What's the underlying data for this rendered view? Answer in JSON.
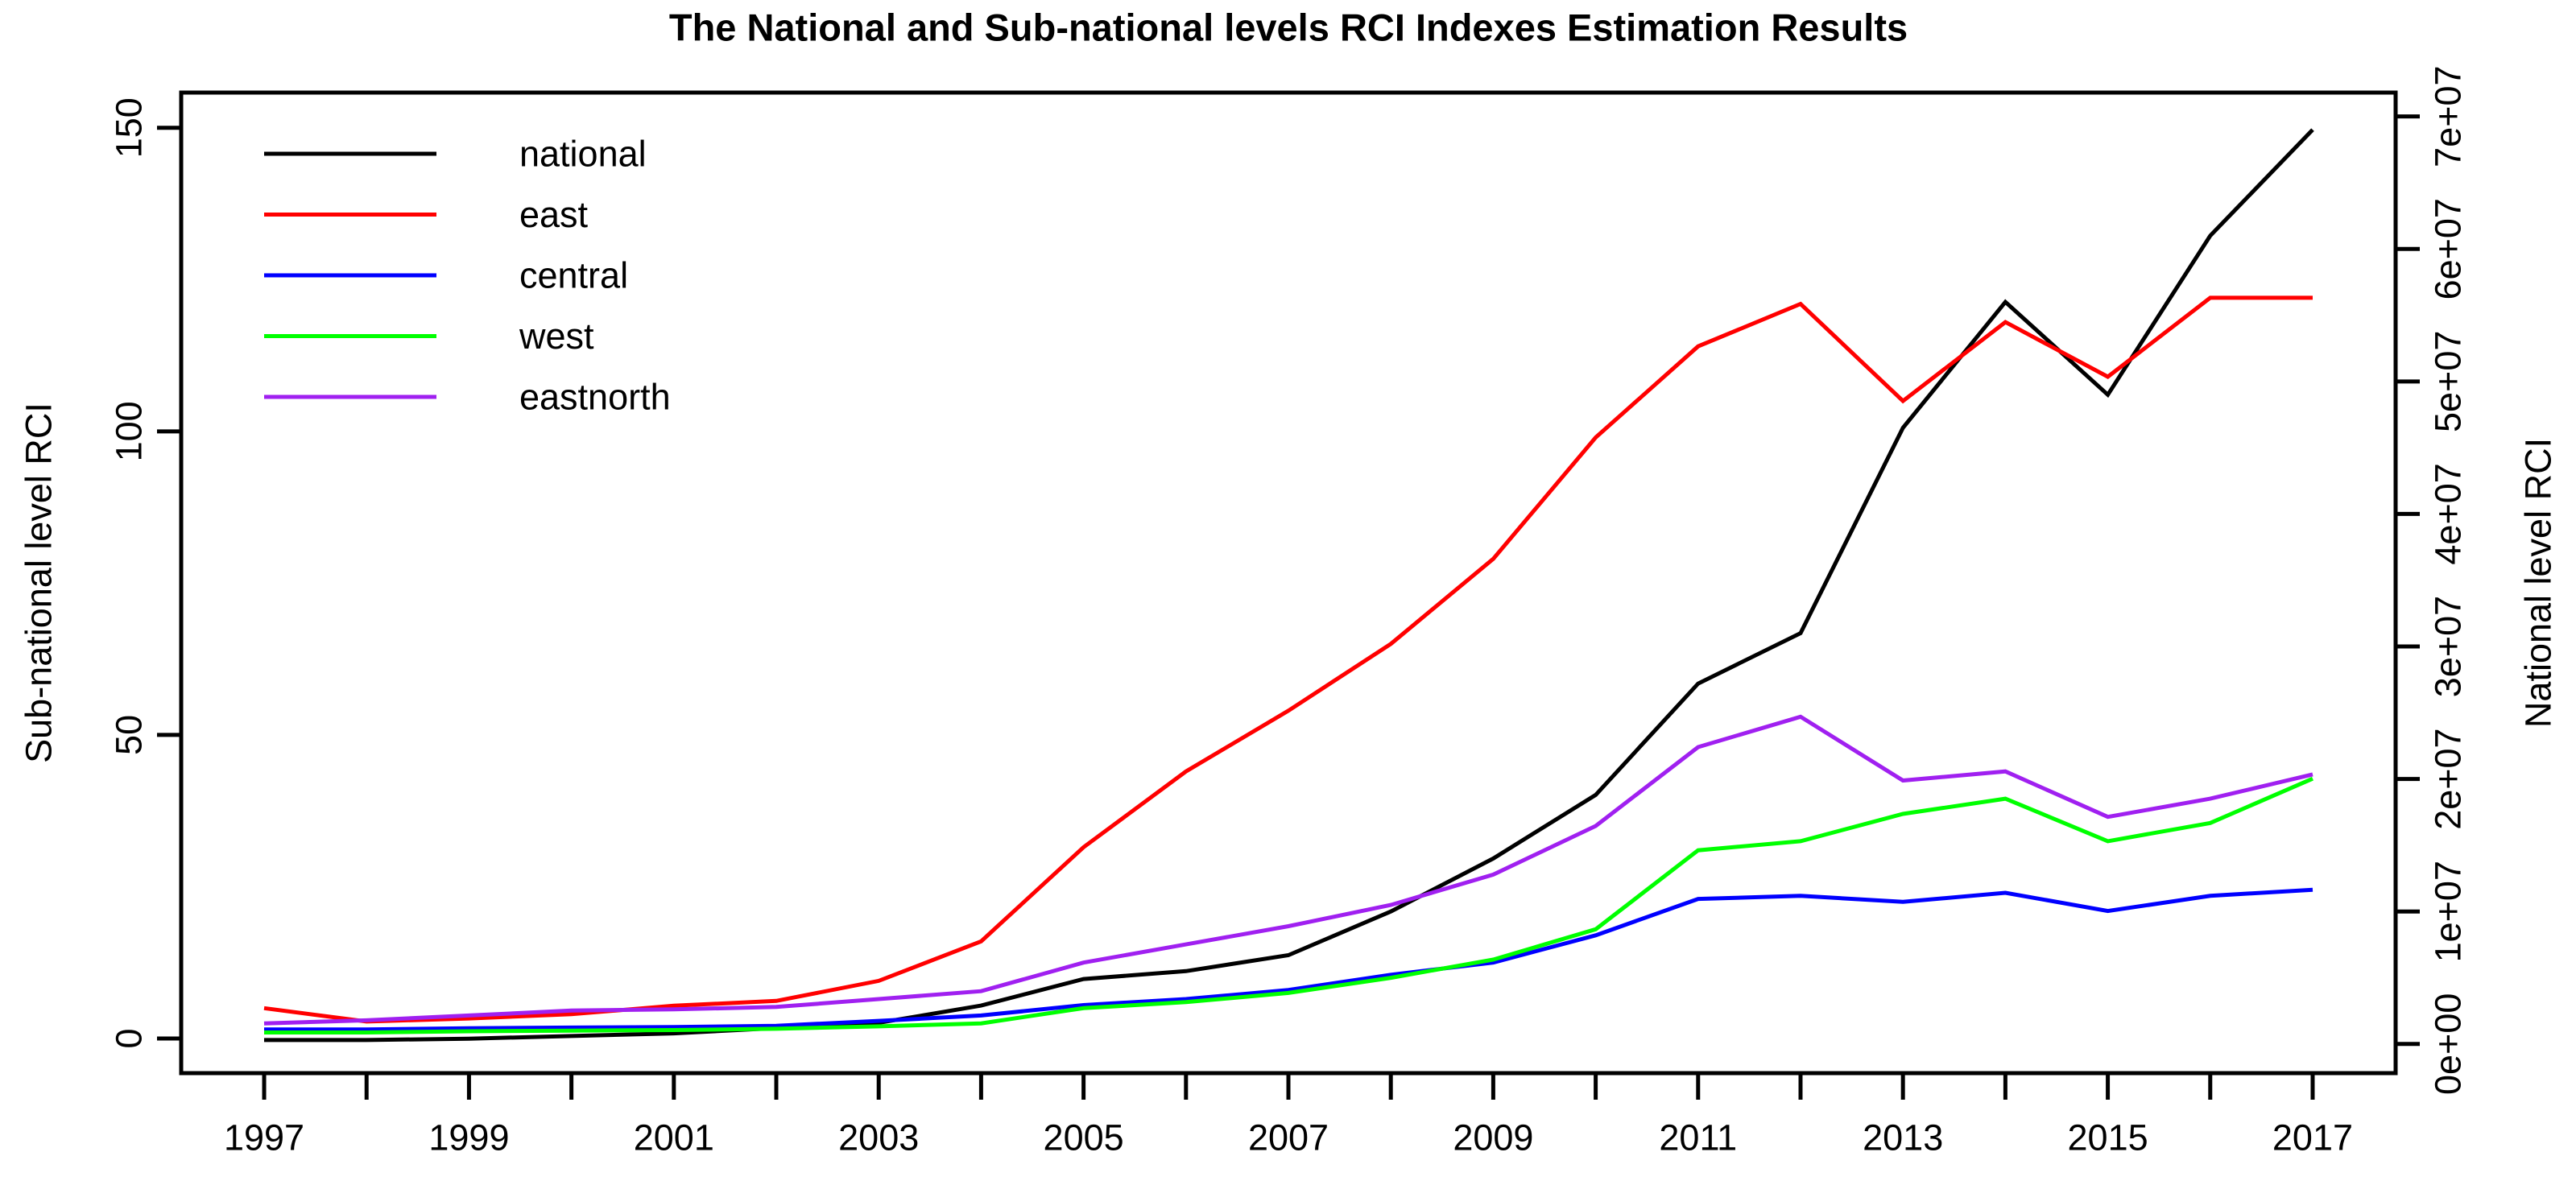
{
  "title": "The National and Sub-national levels RCI Indexes Estimation Results",
  "axes": {
    "left": {
      "title": "Sub-national level RCI",
      "tick_values": [
        0,
        50,
        100,
        150
      ],
      "tick_labels": [
        "0",
        "50",
        "100",
        "150"
      ]
    },
    "right": {
      "title": "National level RCI",
      "tick_values": [
        0,
        10000000,
        20000000,
        30000000,
        40000000,
        50000000,
        60000000,
        70000000
      ],
      "tick_labels": [
        "0e+00",
        "1e+07",
        "2e+07",
        "3e+07",
        "4e+07",
        "5e+07",
        "6e+07",
        "7e+07"
      ]
    },
    "x": {
      "tick_years": [
        1997,
        1998,
        1999,
        2000,
        2001,
        2002,
        2003,
        2004,
        2005,
        2006,
        2007,
        2008,
        2009,
        2010,
        2011,
        2012,
        2013,
        2014,
        2015,
        2016,
        2017
      ],
      "label_years": [
        1997,
        1999,
        2001,
        2003,
        2005,
        2007,
        2009,
        2011,
        2013,
        2015,
        2017
      ]
    }
  },
  "legend": {
    "items": [
      {
        "label": "national",
        "color": "#000000"
      },
      {
        "label": "east",
        "color": "#FF0000"
      },
      {
        "label": "central",
        "color": "#0000FF"
      },
      {
        "label": "west",
        "color": "#00FF00"
      },
      {
        "label": "eastnorth",
        "color": "#A020F0"
      }
    ]
  },
  "chart_data": {
    "type": "line",
    "title": "The National and Sub-national levels RCI Indexes Estimation Results",
    "xlabel": "",
    "left_ylabel": "Sub-national level RCI",
    "right_ylabel": "National level RCI",
    "grid": false,
    "legend_position": "top-left",
    "x": [
      1997,
      1998,
      1999,
      2000,
      2001,
      2002,
      2003,
      2004,
      2005,
      2006,
      2007,
      2008,
      2009,
      2010,
      2011,
      2012,
      2013,
      2014,
      2015,
      2016,
      2017
    ],
    "xlim": [
      1996.19,
      2017.81
    ],
    "left_ylim": [
      -5.7,
      155.8
    ],
    "right_ylim": [
      -2200000,
      71800000
    ],
    "series": [
      {
        "name": "national",
        "axis": "right",
        "color": "#000000",
        "values": [
          300000,
          300000,
          400000,
          600000,
          800000,
          1200000,
          1600000,
          2900000,
          4900000,
          5500000,
          6700000,
          10000000,
          14000000,
          18800000,
          27200000,
          31000000,
          46500000,
          56000000,
          49000000,
          61000000,
          69000000
        ]
      },
      {
        "name": "east",
        "axis": "left",
        "color": "#FF0000",
        "values": [
          5,
          2.8,
          3.3,
          4,
          5.4,
          6.2,
          9.5,
          16,
          31.5,
          44,
          54,
          65,
          79,
          99,
          114,
          121,
          105,
          118,
          109,
          122,
          122
        ]
      },
      {
        "name": "central",
        "axis": "left",
        "color": "#0000FF",
        "values": [
          1.5,
          1.5,
          1.7,
          1.8,
          1.9,
          2.1,
          2.9,
          3.8,
          5.5,
          6.5,
          8,
          10.5,
          12.5,
          17,
          23,
          23.5,
          22.5,
          24,
          21,
          23.5,
          24.5
        ]
      },
      {
        "name": "west",
        "axis": "left",
        "color": "#00FF00",
        "values": [
          1,
          1,
          1.2,
          1.3,
          1.4,
          1.6,
          2,
          2.5,
          5,
          6,
          7.5,
          10,
          13,
          18,
          31,
          32.5,
          37,
          39.5,
          32.5,
          35.5,
          42.8
        ]
      },
      {
        "name": "eastnorth",
        "axis": "left",
        "color": "#A020F0",
        "values": [
          2.5,
          3,
          3.8,
          4.6,
          4.8,
          5.2,
          6.5,
          7.8,
          12.5,
          15.5,
          18.5,
          22,
          27,
          35,
          48,
          53,
          42.5,
          44,
          36.5,
          39.5,
          43.5
        ]
      }
    ]
  }
}
